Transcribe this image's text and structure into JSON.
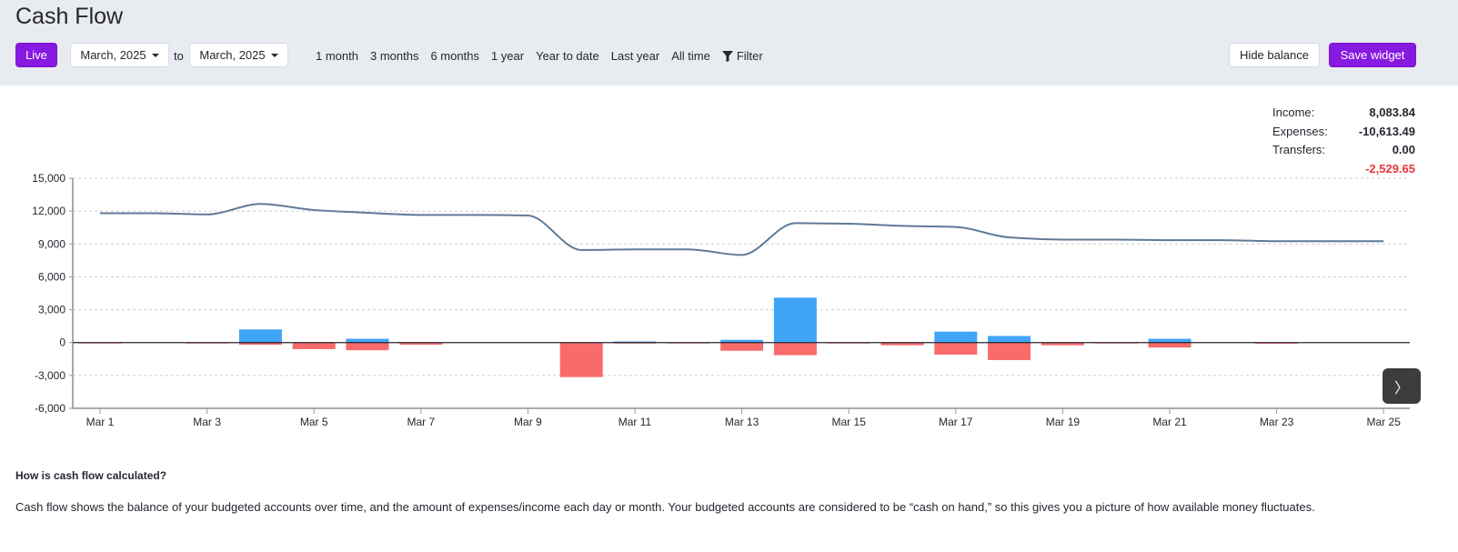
{
  "header": {
    "title": "Cash Flow",
    "live_label": "Live",
    "start_month": "March, 2025",
    "to_label": "to",
    "end_month": "March, 2025",
    "ranges": [
      "1 month",
      "3 months",
      "6 months",
      "1 year",
      "Year to date",
      "Last year",
      "All time"
    ],
    "filter_label": "Filter",
    "hide_balance_label": "Hide balance",
    "save_widget_label": "Save widget"
  },
  "summary": {
    "income_label": "Income:",
    "income": "8,083.84",
    "expenses_label": "Expenses:",
    "expenses": "-10,613.49",
    "transfers_label": "Transfers:",
    "transfers": "0.00",
    "net": "-2,529.65"
  },
  "colors": {
    "accent": "#8719e0",
    "income": "#40a5f7",
    "expense": "#f96b6b",
    "balance": "#5f7a96",
    "net_negative": "#e5343c"
  },
  "chart_data": {
    "type": "bar+line",
    "ylim": [
      -6000,
      15000
    ],
    "yticks": [
      "15,000",
      "12,000",
      "9,000",
      "6,000",
      "3,000",
      "0",
      "-3,000",
      "-6,000"
    ],
    "ytick_values": [
      15000,
      12000,
      9000,
      6000,
      3000,
      0,
      -3000,
      -6000
    ],
    "xtick_labels": [
      "Mar 1",
      "Mar 3",
      "Mar 5",
      "Mar 7",
      "Mar 9",
      "Mar 11",
      "Mar 13",
      "Mar 15",
      "Mar 17",
      "Mar 19",
      "Mar 21",
      "Mar 23",
      "Mar 25"
    ],
    "days": [
      1,
      2,
      3,
      4,
      5,
      6,
      7,
      8,
      9,
      10,
      11,
      12,
      13,
      14,
      15,
      16,
      17,
      18,
      19,
      20,
      21,
      22,
      23,
      24,
      25
    ],
    "income": [
      0,
      0,
      0,
      1200,
      0,
      350,
      0,
      0,
      0,
      0,
      100,
      0,
      250,
      4100,
      0,
      0,
      1000,
      600,
      0,
      0,
      350,
      0,
      0,
      0,
      0
    ],
    "expenses": [
      -30,
      0,
      -80,
      -200,
      -600,
      -700,
      -200,
      0,
      0,
      -3150,
      -50,
      -30,
      -750,
      -1150,
      -30,
      -250,
      -1100,
      -1600,
      -250,
      -20,
      -450,
      0,
      -100,
      0,
      0
    ],
    "balance": [
      11800,
      11800,
      11700,
      12650,
      12100,
      11850,
      11650,
      11650,
      11600,
      8450,
      8500,
      8500,
      8000,
      10900,
      10850,
      10650,
      10550,
      9600,
      9400,
      9400,
      9350,
      9350,
      9250,
      9250,
      9250
    ],
    "grid": true
  },
  "nav_next": "〉",
  "info": {
    "heading": "How is cash flow calculated?",
    "text": "Cash flow shows the balance of your budgeted accounts over time, and the amount of expenses/income each day or month. Your budgeted accounts are considered to be “cash on hand,” so this gives you a picture of how available money fluctuates."
  }
}
